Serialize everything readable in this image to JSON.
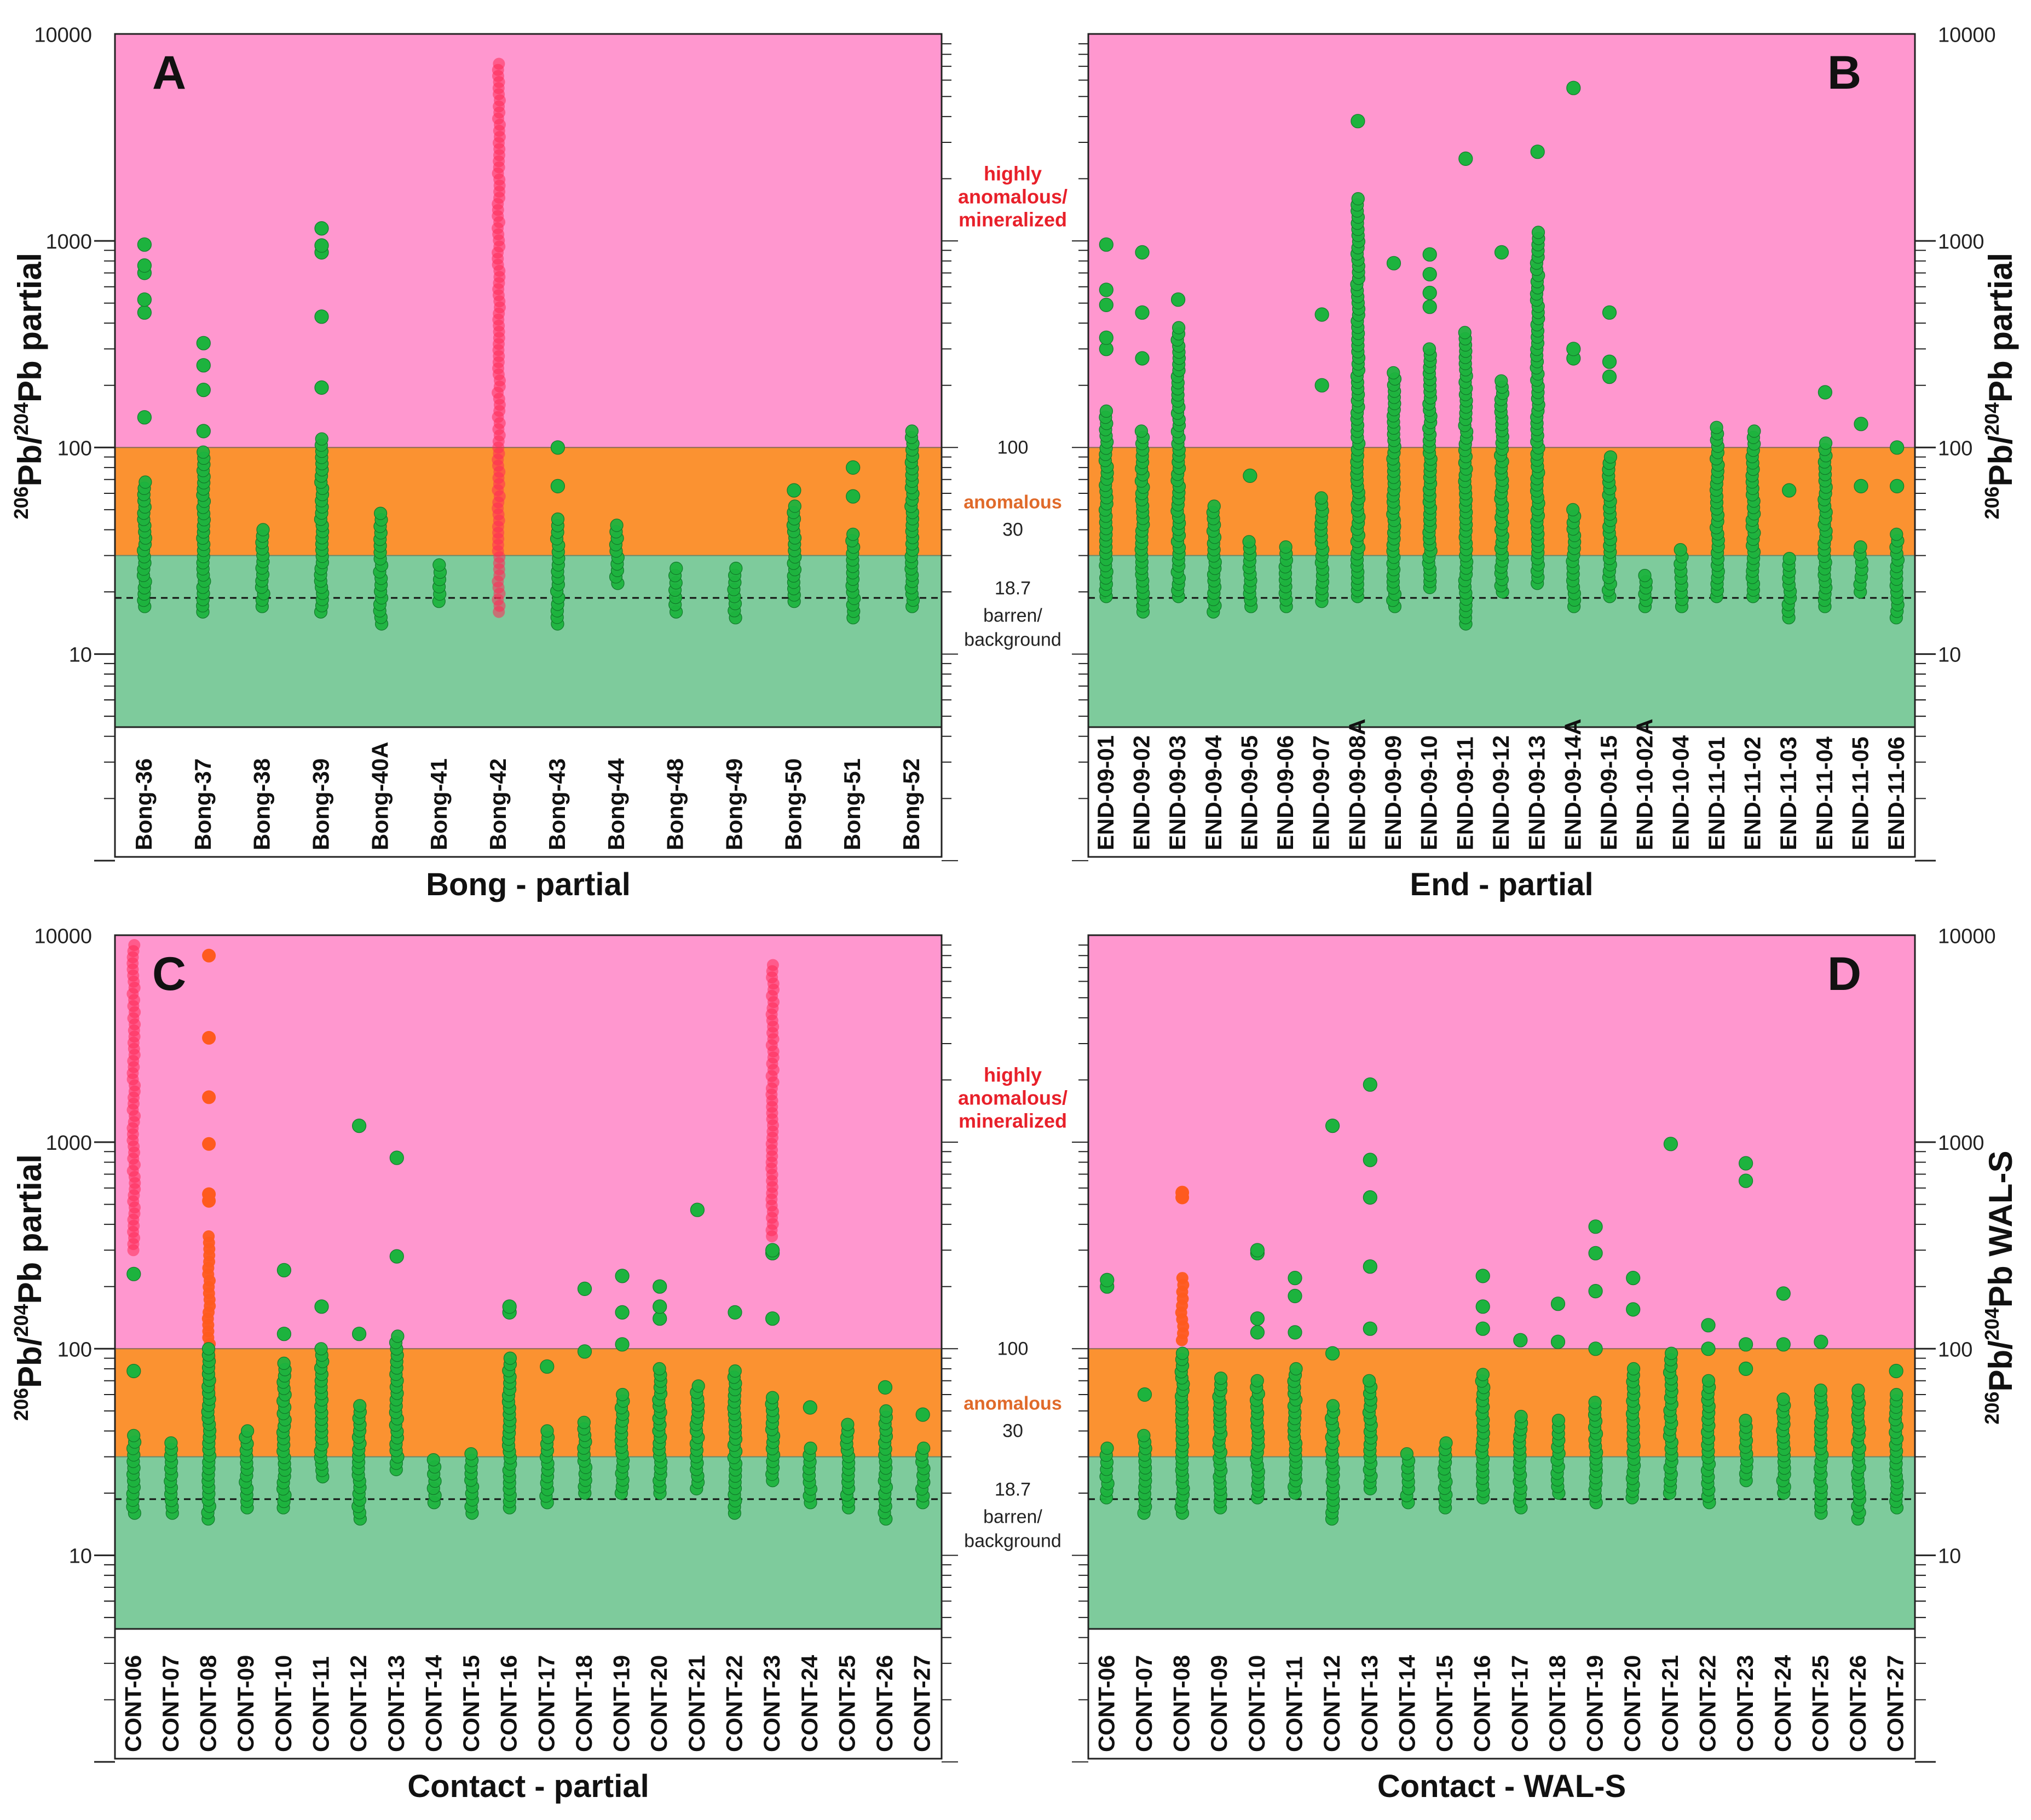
{
  "figure": {
    "zone_labels": {
      "high": [
        "highly",
        "anomalous/",
        "mineralized"
      ],
      "anomalous": "anomalous",
      "barren": [
        "barren/",
        "background"
      ],
      "t100": "100",
      "t30": "30",
      "t187": "18.7"
    },
    "y_ticks": [
      "10",
      "100",
      "1000",
      "10000"
    ],
    "thresholds": {
      "anomalous_lower": 30,
      "highly_anomalous": 100,
      "background": 18.7
    },
    "colors": {
      "high": "#FF97CF",
      "anomalous": "#FB9231",
      "barren": "#7ECB9C",
      "point_green": "#1DB33E",
      "point_red": "#FF2A55",
      "point_orange": "#FF5A1E",
      "label_red": "#E8202A",
      "label_orange": "#E06A2A"
    }
  },
  "chart_data": [
    {
      "id": "A",
      "panel_letter": "A",
      "type": "scatter",
      "yscale": "log",
      "ylim": [
        4.5,
        10000
      ],
      "title": "Bong - partial",
      "ylabel_main": "Pb",
      "ylabel_sup1": "206",
      "ylabel_sup2": "204",
      "ylabel_tail": " partial",
      "categories": [
        "Bong-36",
        "Bong-37",
        "Bong-38",
        "Bong-39",
        "Bong-40A",
        "Bong-41",
        "Bong-42",
        "Bong-43",
        "Bong-44",
        "Bong-48",
        "Bong-49",
        "Bong-50",
        "Bong-51",
        "Bong-52"
      ],
      "series": [
        {
          "name": "Bong-36",
          "color": "green",
          "min": 17,
          "max": 68,
          "extra": [
            140,
            450,
            520,
            700,
            760,
            960
          ]
        },
        {
          "name": "Bong-37",
          "color": "green",
          "min": 16,
          "max": 95,
          "extra": [
            120,
            190,
            250,
            320
          ]
        },
        {
          "name": "Bong-38",
          "color": "green",
          "min": 17,
          "max": 40,
          "extra": []
        },
        {
          "name": "Bong-39",
          "color": "green",
          "min": 16,
          "max": 110,
          "extra": [
            195,
            430,
            880,
            950,
            1150
          ]
        },
        {
          "name": "Bong-40A",
          "color": "green",
          "min": 14,
          "max": 48,
          "extra": []
        },
        {
          "name": "Bong-41",
          "color": "green",
          "min": 18,
          "max": 27,
          "extra": []
        },
        {
          "name": "Bong-42",
          "color": "red",
          "min": 16,
          "max": 7200,
          "extra": []
        },
        {
          "name": "Bong-43",
          "color": "green",
          "min": 14,
          "max": 45,
          "extra": [
            65,
            100
          ]
        },
        {
          "name": "Bong-44",
          "color": "green",
          "min": 22,
          "max": 42,
          "extra": []
        },
        {
          "name": "Bong-48",
          "color": "green",
          "min": 16,
          "max": 26,
          "extra": []
        },
        {
          "name": "Bong-49",
          "color": "green",
          "min": 15,
          "max": 26,
          "extra": []
        },
        {
          "name": "Bong-50",
          "color": "green",
          "min": 18,
          "max": 52,
          "extra": [
            62
          ]
        },
        {
          "name": "Bong-51",
          "color": "green",
          "min": 15,
          "max": 38,
          "extra": [
            58,
            80
          ]
        },
        {
          "name": "Bong-52",
          "color": "green",
          "min": 17,
          "max": 120,
          "extra": []
        }
      ]
    },
    {
      "id": "B",
      "panel_letter": "B",
      "type": "scatter",
      "yscale": "log",
      "ylim": [
        4.5,
        10000
      ],
      "title": "End - partial",
      "ylabel_main": "Pb",
      "ylabel_sup1": "206",
      "ylabel_sup2": "204",
      "ylabel_tail": " partial",
      "categories": [
        "END-09-01",
        "END-09-02",
        "END-09-03",
        "END-09-04",
        "END-09-05",
        "END-09-06",
        "END-09-07",
        "END-09-08A",
        "END-09-09",
        "END-09-10",
        "END-09-11",
        "END-09-12",
        "END-09-13",
        "END-09-14A",
        "END-09-15",
        "END-10-02A",
        "END-10-04",
        "END-11-01",
        "END-11-02",
        "END-11-03",
        "END-11-04",
        "END-11-05",
        "END-11-06"
      ],
      "series": [
        {
          "name": "END-09-01",
          "color": "green",
          "min": 19,
          "max": 150,
          "extra": [
            300,
            340,
            490,
            580,
            960
          ]
        },
        {
          "name": "END-09-02",
          "color": "green",
          "min": 16,
          "max": 120,
          "extra": [
            270,
            450,
            880
          ]
        },
        {
          "name": "END-09-03",
          "color": "green",
          "min": 19,
          "max": 380,
          "extra": [
            520
          ]
        },
        {
          "name": "END-09-04",
          "color": "green",
          "min": 16,
          "max": 52,
          "extra": []
        },
        {
          "name": "END-09-05",
          "color": "green",
          "min": 17,
          "max": 35,
          "extra": [
            73
          ]
        },
        {
          "name": "END-09-06",
          "color": "green",
          "min": 17,
          "max": 33,
          "extra": []
        },
        {
          "name": "END-09-07",
          "color": "green",
          "min": 18,
          "max": 57,
          "extra": [
            200,
            440
          ]
        },
        {
          "name": "END-09-08A",
          "color": "green",
          "min": 19,
          "max": 1600,
          "extra": [
            3800
          ]
        },
        {
          "name": "END-09-09",
          "color": "green",
          "min": 17,
          "max": 230,
          "extra": [
            780
          ]
        },
        {
          "name": "END-09-10",
          "color": "green",
          "min": 21,
          "max": 300,
          "extra": [
            480,
            560,
            690,
            860
          ]
        },
        {
          "name": "END-09-11",
          "color": "green",
          "min": 14,
          "max": 360,
          "extra": [
            2500
          ]
        },
        {
          "name": "END-09-12",
          "color": "green",
          "min": 20,
          "max": 210,
          "extra": [
            880
          ]
        },
        {
          "name": "END-09-13",
          "color": "green",
          "min": 22,
          "max": 1100,
          "extra": [
            2700
          ]
        },
        {
          "name": "END-09-14A",
          "color": "green",
          "min": 17,
          "max": 50,
          "extra": [
            270,
            300,
            5500
          ]
        },
        {
          "name": "END-09-15",
          "color": "green",
          "min": 19,
          "max": 90,
          "extra": [
            220,
            260,
            450
          ]
        },
        {
          "name": "END-10-02A",
          "color": "green",
          "min": 17,
          "max": 24,
          "extra": []
        },
        {
          "name": "END-10-04",
          "color": "green",
          "min": 17,
          "max": 32,
          "extra": []
        },
        {
          "name": "END-11-01",
          "color": "green",
          "min": 19,
          "max": 125,
          "extra": []
        },
        {
          "name": "END-11-02",
          "color": "green",
          "min": 19,
          "max": 120,
          "extra": []
        },
        {
          "name": "END-11-03",
          "color": "green",
          "min": 15,
          "max": 29,
          "extra": [
            62
          ]
        },
        {
          "name": "END-11-04",
          "color": "green",
          "min": 17,
          "max": 105,
          "extra": [
            185
          ]
        },
        {
          "name": "END-11-05",
          "color": "green",
          "min": 20,
          "max": 33,
          "extra": [
            65,
            130
          ]
        },
        {
          "name": "END-11-06",
          "color": "green",
          "min": 15,
          "max": 38,
          "extra": [
            65,
            100
          ]
        }
      ]
    },
    {
      "id": "C",
      "panel_letter": "C",
      "type": "scatter",
      "yscale": "log",
      "ylim": [
        4.5,
        10000
      ],
      "title": "Contact - partial",
      "ylabel_main": "Pb",
      "ylabel_sup1": "206",
      "ylabel_sup2": "204",
      "ylabel_tail": " partial",
      "categories": [
        "CONT-06",
        "CONT-07",
        "CONT-08",
        "CONT-09",
        "CONT-10",
        "CONT-11",
        "CONT-12",
        "CONT-13",
        "CONT-14",
        "CONT-15",
        "CONT-16",
        "CONT-17",
        "CONT-18",
        "CONT-19",
        "CONT-20",
        "CONT-21",
        "CONT-22",
        "CONT-23",
        "CONT-24",
        "CONT-25",
        "CONT-26",
        "CONT-27"
      ],
      "series": [
        {
          "name": "CONT-06",
          "color": "red",
          "min": 300,
          "max": 9000,
          "extra": []
        },
        {
          "name": "CONT-06",
          "color": "green",
          "min": 16,
          "max": 38,
          "extra": [
            78,
            230
          ]
        },
        {
          "name": "CONT-07",
          "color": "green",
          "min": 16,
          "max": 35,
          "extra": []
        },
        {
          "name": "CONT-08",
          "color": "orange",
          "min": 60,
          "max": 350,
          "extra": [
            520,
            560,
            980,
            1650,
            3200,
            8000
          ]
        },
        {
          "name": "CONT-08",
          "color": "green",
          "min": 15,
          "max": 100,
          "extra": []
        },
        {
          "name": "CONT-09",
          "color": "green",
          "min": 17,
          "max": 40,
          "extra": []
        },
        {
          "name": "CONT-10",
          "color": "green",
          "min": 17,
          "max": 85,
          "extra": [
            118,
            240
          ]
        },
        {
          "name": "CONT-11",
          "color": "green",
          "min": 24,
          "max": 100,
          "extra": [
            160
          ]
        },
        {
          "name": "CONT-12",
          "color": "green",
          "min": 15,
          "max": 53,
          "extra": [
            118,
            1200
          ]
        },
        {
          "name": "CONT-13",
          "color": "green",
          "min": 26,
          "max": 115,
          "extra": [
            280,
            840
          ]
        },
        {
          "name": "CONT-14",
          "color": "green",
          "min": 18,
          "max": 29,
          "extra": []
        },
        {
          "name": "CONT-15",
          "color": "green",
          "min": 16,
          "max": 31,
          "extra": []
        },
        {
          "name": "CONT-16",
          "color": "green",
          "min": 17,
          "max": 90,
          "extra": [
            150,
            160
          ]
        },
        {
          "name": "CONT-17",
          "color": "green",
          "min": 18,
          "max": 40,
          "extra": [
            82
          ]
        },
        {
          "name": "CONT-18",
          "color": "green",
          "min": 20,
          "max": 44,
          "extra": [
            97,
            195
          ]
        },
        {
          "name": "CONT-19",
          "color": "green",
          "min": 20,
          "max": 60,
          "extra": [
            105,
            150,
            225
          ]
        },
        {
          "name": "CONT-20",
          "color": "green",
          "min": 20,
          "max": 80,
          "extra": [
            140,
            160,
            200
          ]
        },
        {
          "name": "CONT-21",
          "color": "green",
          "min": 21,
          "max": 66,
          "extra": [
            470
          ]
        },
        {
          "name": "CONT-22",
          "color": "green",
          "min": 16,
          "max": 78,
          "extra": [
            150
          ]
        },
        {
          "name": "CONT-23",
          "color": "red",
          "min": 350,
          "max": 7200,
          "extra": []
        },
        {
          "name": "CONT-23",
          "color": "green",
          "min": 23,
          "max": 58,
          "extra": [
            140,
            290,
            300
          ]
        },
        {
          "name": "CONT-24",
          "color": "green",
          "min": 18,
          "max": 33,
          "extra": [
            52
          ]
        },
        {
          "name": "CONT-25",
          "color": "green",
          "min": 17,
          "max": 43,
          "extra": []
        },
        {
          "name": "CONT-26",
          "color": "green",
          "min": 15,
          "max": 50,
          "extra": [
            65
          ]
        },
        {
          "name": "CONT-27",
          "color": "green",
          "min": 18,
          "max": 33,
          "extra": [
            48
          ]
        }
      ]
    },
    {
      "id": "D",
      "panel_letter": "D",
      "type": "scatter",
      "yscale": "log",
      "ylim": [
        4.5,
        10000
      ],
      "title": "Contact - WAL-S",
      "ylabel_main": "Pb WAL-S",
      "ylabel_sup1": "206",
      "ylabel_sup2": "204",
      "ylabel_tail": "",
      "categories": [
        "CONT-06",
        "CONT-07",
        "CONT-08",
        "CONT-09",
        "CONT-10",
        "CONT-11",
        "CONT-12",
        "CONT-13",
        "CONT-14",
        "CONT-15",
        "CONT-16",
        "CONT-17",
        "CONT-18",
        "CONT-19",
        "CONT-20",
        "CONT-21",
        "CONT-22",
        "CONT-23",
        "CONT-24",
        "CONT-25",
        "CONT-26",
        "CONT-27"
      ],
      "series": [
        {
          "name": "CONT-06",
          "color": "green",
          "min": 19,
          "max": 33,
          "extra": [
            200,
            215
          ]
        },
        {
          "name": "CONT-07",
          "color": "green",
          "min": 16,
          "max": 38,
          "extra": [
            60
          ]
        },
        {
          "name": "CONT-08",
          "color": "orange",
          "min": 110,
          "max": 220,
          "extra": [
            540,
            570
          ]
        },
        {
          "name": "CONT-08",
          "color": "green",
          "min": 16,
          "max": 95,
          "extra": []
        },
        {
          "name": "CONT-09",
          "color": "green",
          "min": 17,
          "max": 72,
          "extra": []
        },
        {
          "name": "CONT-10",
          "color": "green",
          "min": 19,
          "max": 70,
          "extra": [
            120,
            140,
            290,
            300
          ]
        },
        {
          "name": "CONT-11",
          "color": "green",
          "min": 20,
          "max": 80,
          "extra": [
            120,
            180,
            220
          ]
        },
        {
          "name": "CONT-12",
          "color": "green",
          "min": 15,
          "max": 53,
          "extra": [
            95,
            1200
          ]
        },
        {
          "name": "CONT-13",
          "color": "green",
          "min": 21,
          "max": 70,
          "extra": [
            125,
            250,
            540,
            820,
            1900
          ]
        },
        {
          "name": "CONT-14",
          "color": "green",
          "min": 18,
          "max": 31,
          "extra": []
        },
        {
          "name": "CONT-15",
          "color": "green",
          "min": 17,
          "max": 35,
          "extra": []
        },
        {
          "name": "CONT-16",
          "color": "green",
          "min": 19,
          "max": 75,
          "extra": [
            125,
            160,
            225
          ]
        },
        {
          "name": "CONT-17",
          "color": "green",
          "min": 17,
          "max": 47,
          "extra": [
            110
          ]
        },
        {
          "name": "CONT-18",
          "color": "green",
          "min": 20,
          "max": 45,
          "extra": [
            108,
            165
          ]
        },
        {
          "name": "CONT-19",
          "color": "green",
          "min": 18,
          "max": 55,
          "extra": [
            100,
            190,
            290,
            390
          ]
        },
        {
          "name": "CONT-20",
          "color": "green",
          "min": 19,
          "max": 80,
          "extra": [
            155,
            220
          ]
        },
        {
          "name": "CONT-21",
          "color": "green",
          "min": 20,
          "max": 95,
          "extra": [
            980
          ]
        },
        {
          "name": "CONT-22",
          "color": "green",
          "min": 18,
          "max": 70,
          "extra": [
            100,
            130
          ]
        },
        {
          "name": "CONT-23",
          "color": "green",
          "min": 23,
          "max": 45,
          "extra": [
            80,
            105,
            650,
            790
          ]
        },
        {
          "name": "CONT-24",
          "color": "green",
          "min": 20,
          "max": 57,
          "extra": [
            105,
            185
          ]
        },
        {
          "name": "CONT-25",
          "color": "green",
          "min": 16,
          "max": 63,
          "extra": [
            108
          ]
        },
        {
          "name": "CONT-26",
          "color": "green",
          "min": 15,
          "max": 63,
          "extra": []
        },
        {
          "name": "CONT-27",
          "color": "green",
          "min": 17,
          "max": 60,
          "extra": [
            78
          ]
        }
      ]
    }
  ]
}
